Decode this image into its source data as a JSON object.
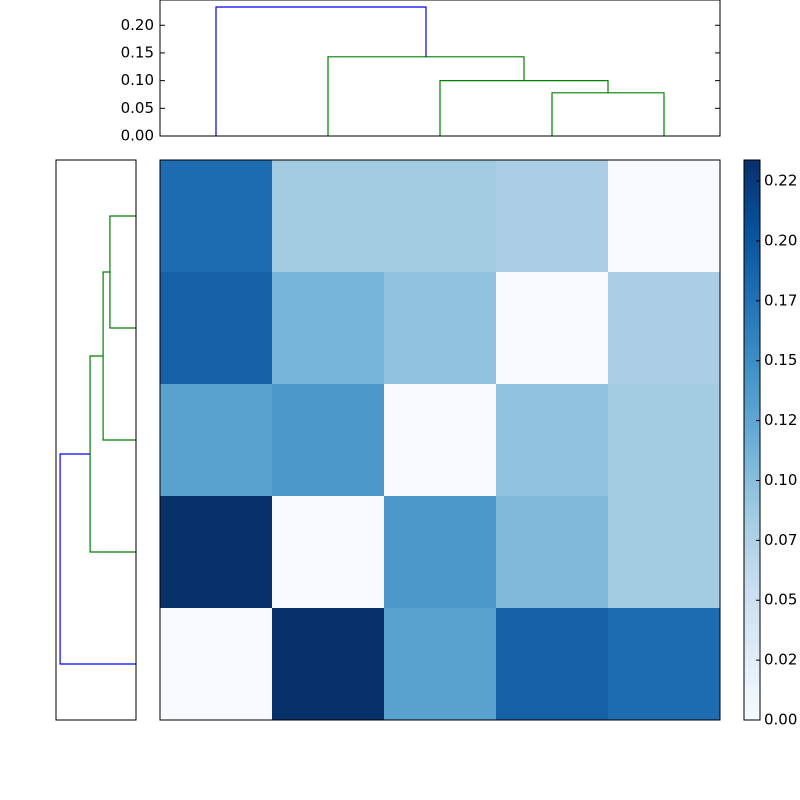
{
  "chart_data": {
    "type": "heatmap",
    "values": [
      [
        0.18,
        0.085,
        0.085,
        0.08,
        0
      ],
      [
        0.19,
        0.11,
        0.095,
        0,
        0.08
      ],
      [
        0.13,
        0.14,
        0,
        0.095,
        0.085
      ],
      [
        0.233,
        0,
        0.14,
        0.105,
        0.085
      ],
      [
        0,
        0.233,
        0.13,
        0.19,
        0.18
      ]
    ],
    "colormap": "Blues",
    "clim": [
      0,
      0.2338
    ],
    "colorbar_ticks": [
      {
        "value": 0,
        "label": "0.00"
      },
      {
        "value": 0.025,
        "label": "0.02"
      },
      {
        "value": 0.05,
        "label": "0.05"
      },
      {
        "value": 0.075,
        "label": "0.07"
      },
      {
        "value": 0.1,
        "label": "0.10"
      },
      {
        "value": 0.125,
        "label": "0.12"
      },
      {
        "value": 0.15,
        "label": "0.15"
      },
      {
        "value": 0.175,
        "label": "0.17"
      },
      {
        "value": 0.2,
        "label": "0.20"
      },
      {
        "value": 0.225,
        "label": "0.22"
      }
    ],
    "top_dendrogram": {
      "linkage": [
        [
          3,
          4,
          0.078
        ],
        [
          2,
          5,
          0.1
        ],
        [
          1,
          6,
          0.143
        ],
        [
          0,
          7,
          0.233
        ]
      ],
      "colors": [
        "#008000",
        "#008000",
        "#008000",
        "#0000ff"
      ],
      "ylim": [
        0,
        0.2456
      ],
      "yticks": [
        {
          "value": 0,
          "label": "0.00"
        },
        {
          "value": 0.05,
          "label": "0.05"
        },
        {
          "value": 0.1,
          "label": "0.10"
        },
        {
          "value": 0.15,
          "label": "0.15"
        },
        {
          "value": 0.2,
          "label": "0.20"
        }
      ]
    },
    "left_dendrogram": {
      "linkage": [
        [
          0,
          1,
          0.08
        ],
        [
          2,
          5,
          0.101
        ],
        [
          3,
          6,
          0.141
        ],
        [
          4,
          7,
          0.233
        ]
      ],
      "colors": [
        "#008000",
        "#008000",
        "#008000",
        "#0000ff"
      ],
      "xlim": [
        0.2456,
        0
      ]
    }
  }
}
